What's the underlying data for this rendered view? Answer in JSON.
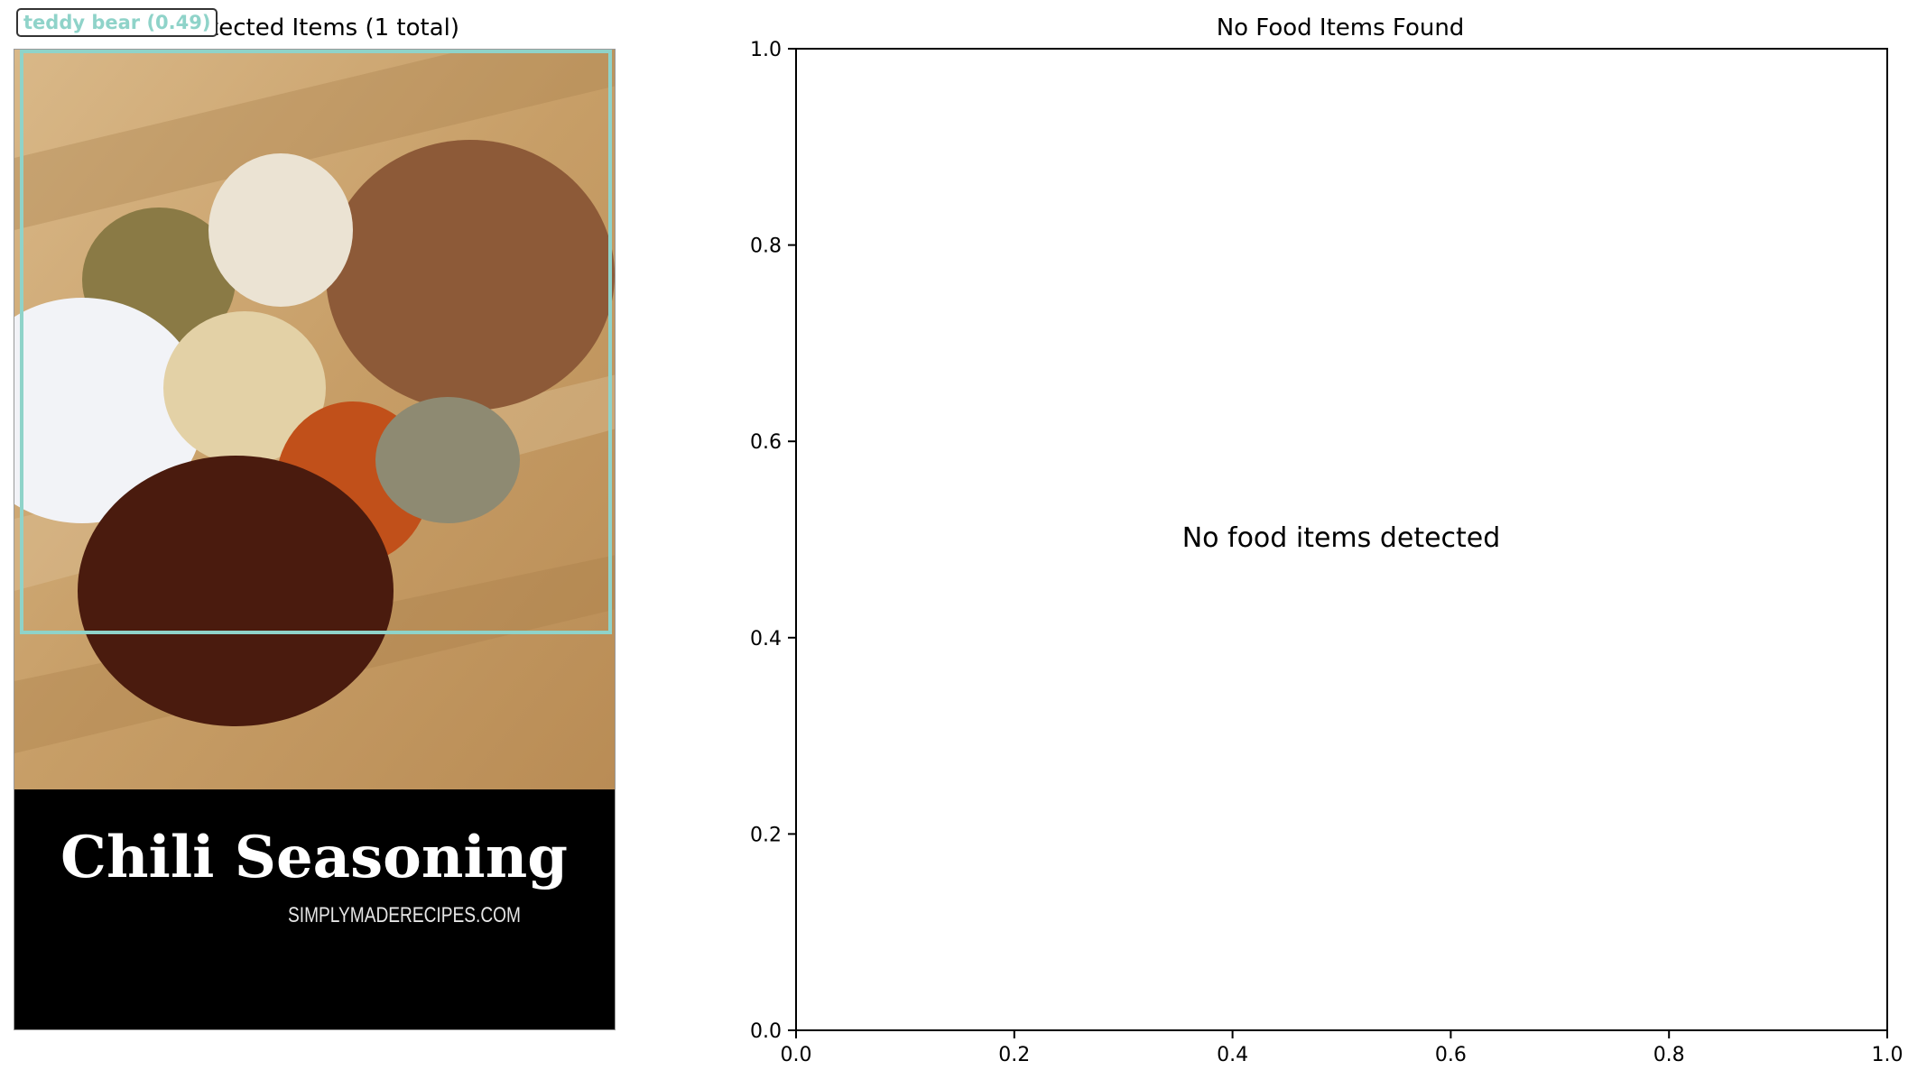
{
  "left_panel": {
    "title": "Detected Items (1 total)",
    "detection": {
      "label": "teddy bear (0.49)",
      "color": "#8fd3c9"
    },
    "photo": {
      "banner_title": "Chili Seasoning",
      "banner_subtitle": "SIMPLYMADERECIPES.COM"
    }
  },
  "chart_data": {
    "type": "scatter",
    "title": "No Food Items Found",
    "annotation": "No food items detected",
    "xlim": [
      0.0,
      1.0
    ],
    "ylim": [
      0.0,
      1.0
    ],
    "x_ticks": [
      "0.0",
      "0.2",
      "0.4",
      "0.6",
      "0.8",
      "1.0"
    ],
    "y_ticks": [
      "0.0",
      "0.2",
      "0.4",
      "0.6",
      "0.8",
      "1.0"
    ],
    "grid": false,
    "series": []
  }
}
